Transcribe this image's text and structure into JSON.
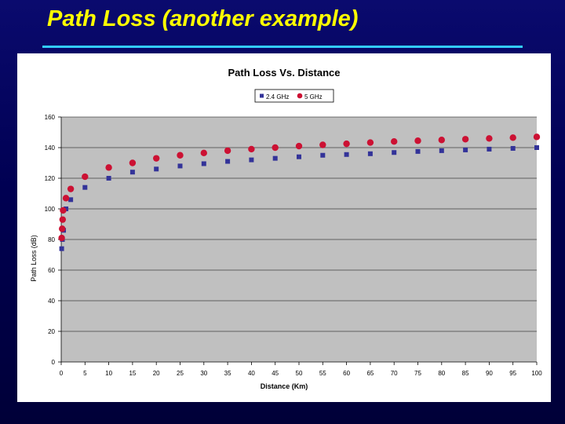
{
  "slide": {
    "title": "Path Loss (another example)"
  },
  "colors": {
    "background": "#000052",
    "title": "#ffff00",
    "rule": "#33ccff",
    "plot_area": "#c0c0c0",
    "series_24": "#333399",
    "series_5": "#cc1133"
  },
  "chart_data": {
    "type": "scatter",
    "title": "Path Loss Vs. Distance",
    "xlabel": "Distance (Km)",
    "ylabel": "Path Loss (dB)",
    "xlim": [
      0,
      100
    ],
    "ylim": [
      0,
      160
    ],
    "xticks": [
      0,
      5,
      10,
      15,
      20,
      25,
      30,
      35,
      40,
      45,
      50,
      55,
      60,
      65,
      70,
      75,
      80,
      85,
      90,
      95,
      100
    ],
    "yticks": [
      0,
      20,
      40,
      60,
      80,
      100,
      120,
      140,
      160
    ],
    "grid": true,
    "legend_position": "top-center",
    "series": [
      {
        "name": "2.4 GHz",
        "marker": "square",
        "x": [
          0.1,
          0.25,
          0.5,
          1,
          2,
          5,
          10,
          15,
          20,
          25,
          30,
          35,
          40,
          45,
          50,
          55,
          60,
          65,
          70,
          75,
          80,
          85,
          90,
          95,
          100
        ],
        "y": [
          74,
          80,
          86,
          100,
          106,
          114,
          120,
          124,
          126,
          128,
          129.5,
          131,
          132,
          133,
          134,
          135,
          135.5,
          136,
          136.8,
          137.5,
          138,
          138.5,
          139,
          139.5,
          140
        ]
      },
      {
        "name": "5 GHz",
        "marker": "circle",
        "x": [
          0.1,
          0.2,
          0.3,
          0.4,
          1,
          2,
          5,
          10,
          15,
          20,
          25,
          30,
          35,
          40,
          45,
          50,
          55,
          60,
          65,
          70,
          75,
          80,
          85,
          90,
          95,
          100
        ],
        "y": [
          81,
          87,
          93,
          99,
          107,
          113,
          121,
          127,
          130,
          133,
          135,
          136.5,
          138,
          139,
          140,
          141,
          141.8,
          142.5,
          143.3,
          144,
          144.5,
          145,
          145.5,
          146,
          146.5,
          147
        ]
      }
    ]
  }
}
